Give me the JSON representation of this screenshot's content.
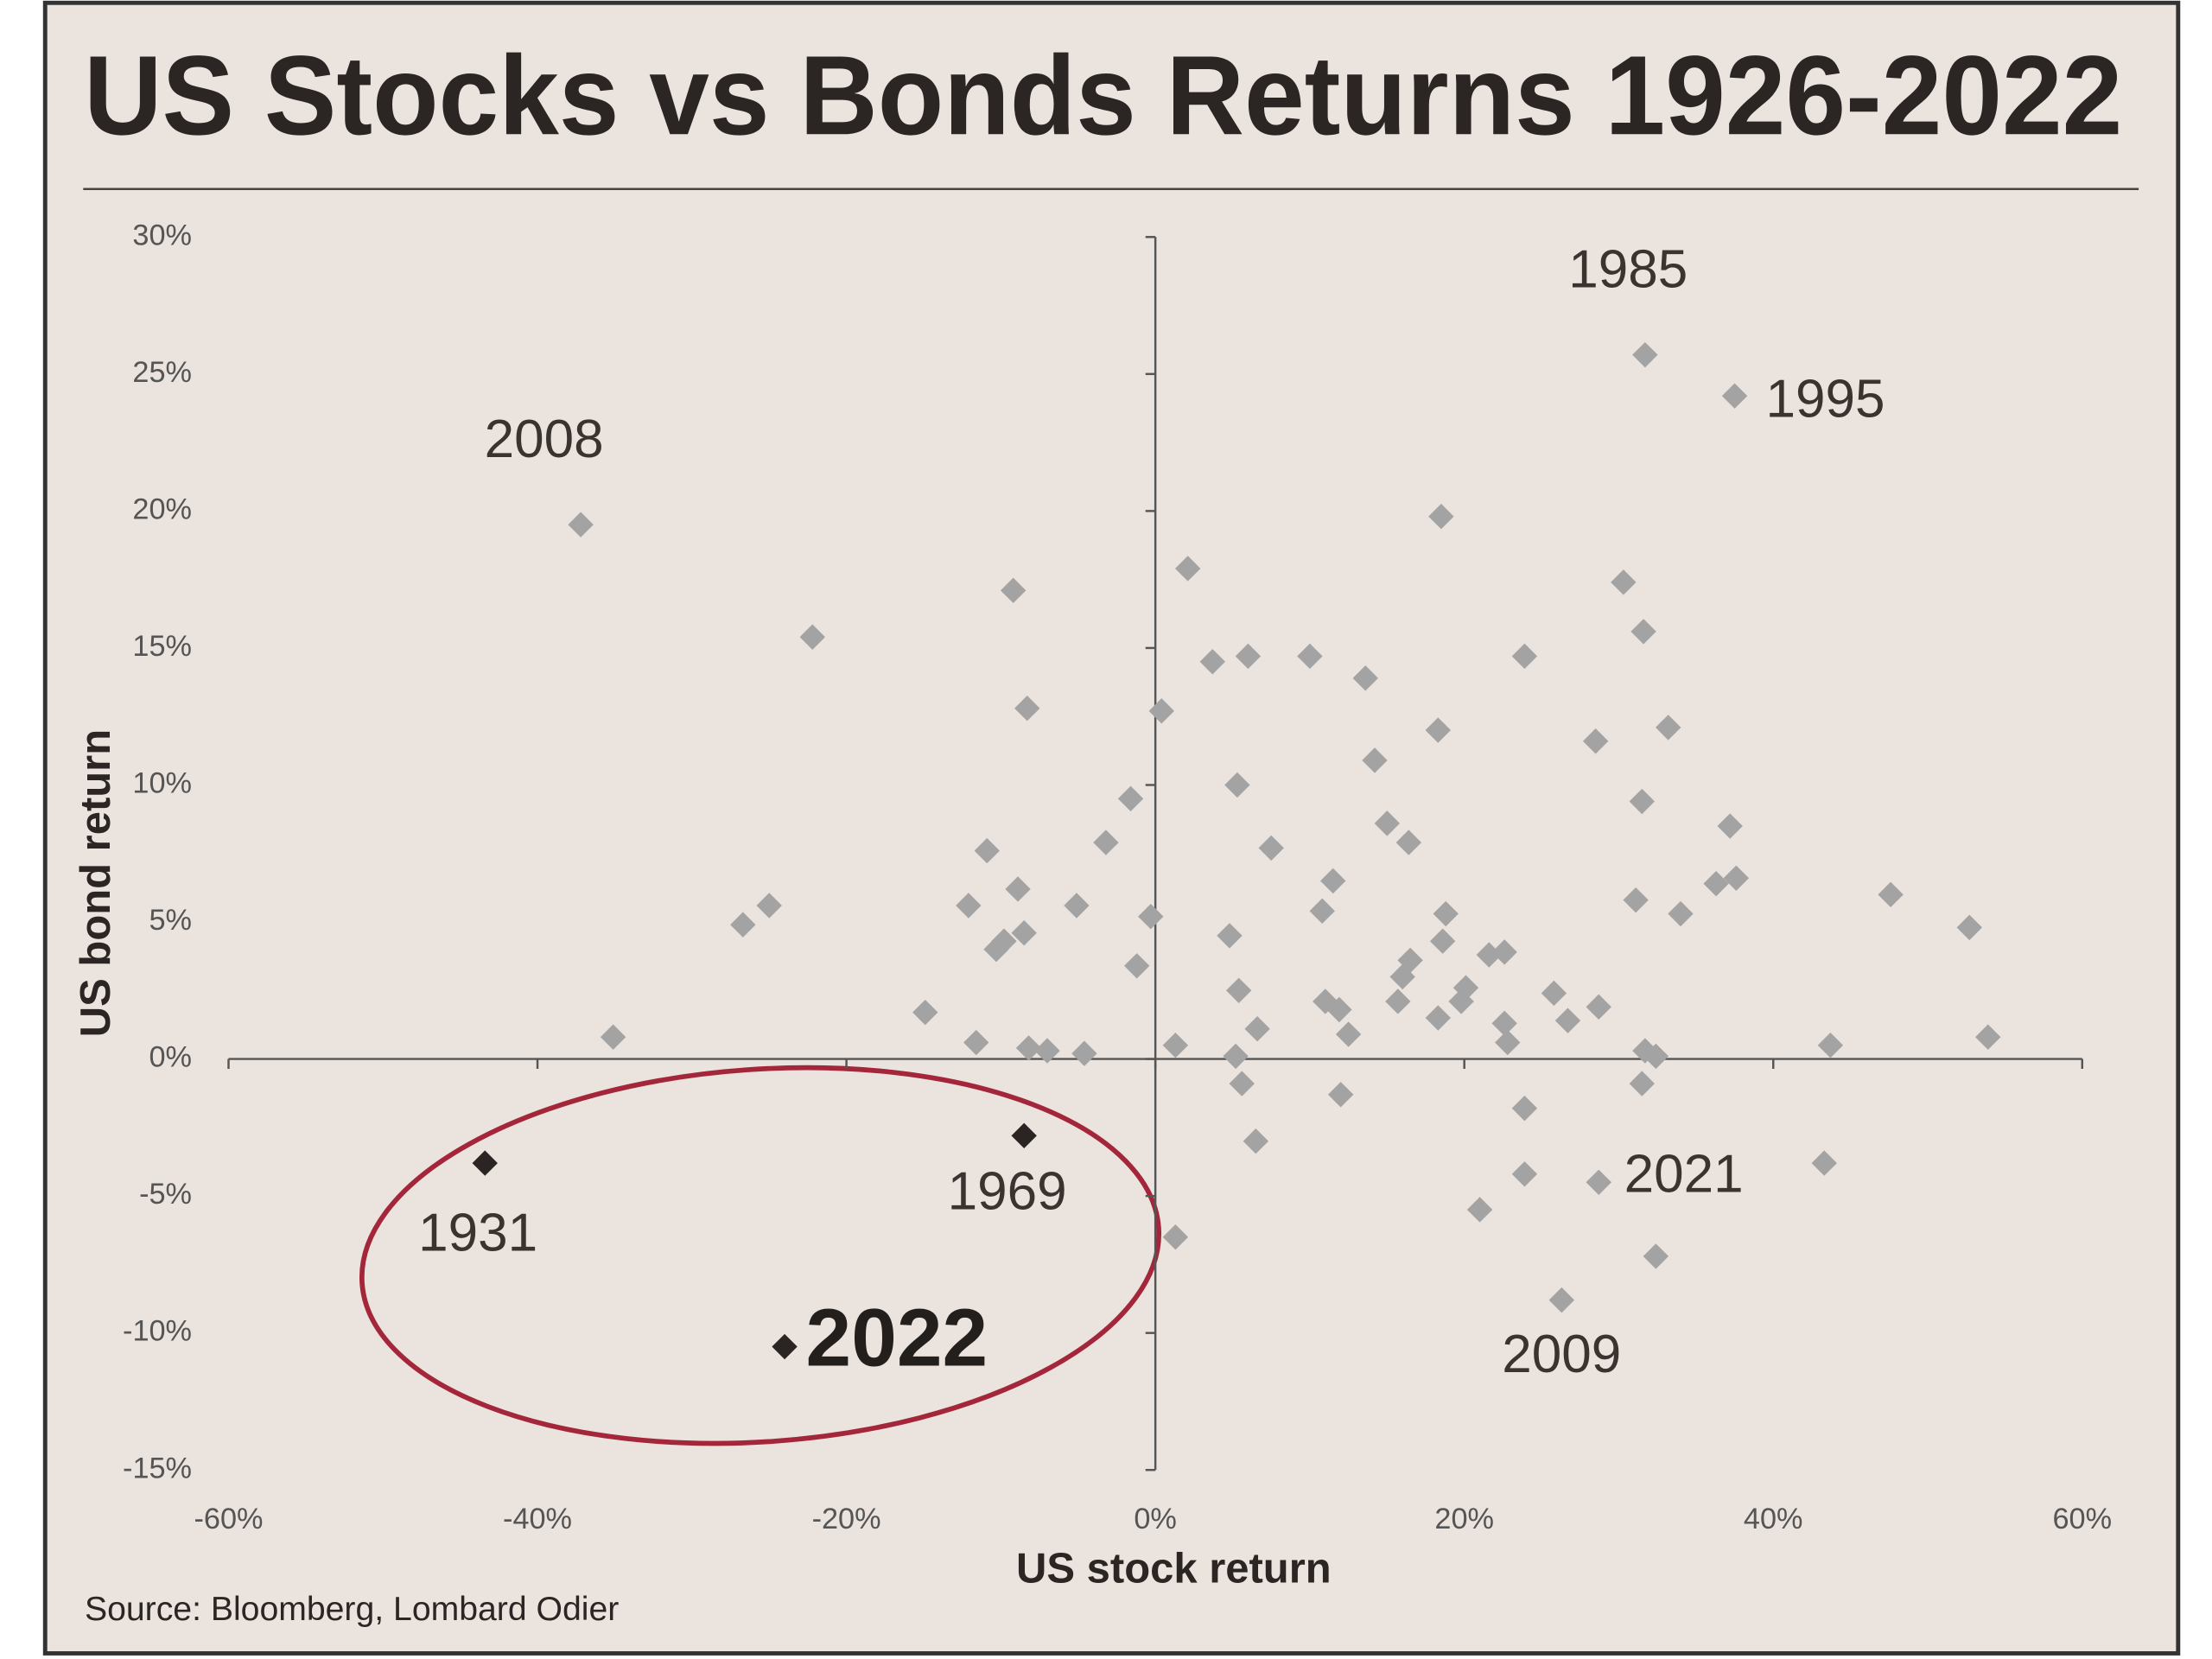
{
  "chart_data": {
    "type": "scatter",
    "title": "US Stocks vs Bonds Returns 1926-2022",
    "x_label": "US stock return",
    "y_label": "US bond return",
    "source": "Source: Bloomberg, Lombard Odier",
    "xlim": [
      -60,
      60
    ],
    "ylim": [
      -15,
      30
    ],
    "xticks": [
      {
        "value": -60,
        "label": "-60%"
      },
      {
        "value": -40,
        "label": "-40%"
      },
      {
        "value": -20,
        "label": "-20%"
      },
      {
        "value": 0,
        "label": "0%"
      },
      {
        "value": 20,
        "label": "20%"
      },
      {
        "value": 40,
        "label": "40%"
      },
      {
        "value": 60,
        "label": "60%"
      }
    ],
    "yticks": [
      {
        "value": -15,
        "label": "-15%"
      },
      {
        "value": -10,
        "label": "-10%"
      },
      {
        "value": -5,
        "label": "-5%"
      },
      {
        "value": 0,
        "label": "0%"
      },
      {
        "value": 5,
        "label": "5%"
      },
      {
        "value": 10,
        "label": "10%"
      },
      {
        "value": 15,
        "label": "15%"
      },
      {
        "value": 20,
        "label": "20%"
      },
      {
        "value": 25,
        "label": "25%"
      },
      {
        "value": 30,
        "label": "30%"
      }
    ],
    "grid": false,
    "series": [
      {
        "color": "#a3a3a3",
        "x": [
          31.7,
          37.5,
          -37.2,
          28.7,
          26.3
        ],
        "y": [
          25.7,
          24.2,
          19.5,
          -4.5,
          -8.8
        ],
        "point_labels": [
          "1985",
          "1995",
          "2008",
          "2021",
          "2009"
        ]
      },
      {
        "color": "#a3a3a3",
        "x": [
          18.5,
          2.1,
          30.3,
          -9.2,
          -22.2,
          31.6,
          3.7,
          6.0,
          10.0,
          23.9,
          13.6,
          -8.3,
          0.4,
          33.2,
          18.3,
          28.5,
          14.2,
          5.3,
          -1.6,
          31.5,
          15.0,
          37.2,
          -3.2,
          16.4,
          -10.9,
          7.5,
          36.3,
          37.6,
          11.5,
          -8.9,
          47.6,
          -25.0,
          -12.1,
          -5.1,
          31.1,
          -26.7,
          10.8,
          18.8,
          34.0,
          -0.3,
          52.7,
          -8.5,
          -9.8,
          -10.3,
          4.8,
          18.6,
          21.6,
          22.6,
          16.5,
          16.0,
          -1.2,
          5.4,
          20.1,
          19.8,
          25.8,
          11.0,
          15.7,
          11.9,
          28.7,
          -14.9,
          18.3,
          22.6,
          26.7,
          6.6,
          12.5,
          -35.1,
          53.9,
          -11.6,
          1.3,
          22.8,
          43.7,
          -8.2,
          -7.0,
          -4.6,
          31.7,
          32.4,
          5.2,
          5.6,
          31.5,
          12.0,
          23.9,
          6.5,
          43.3,
          23.9,
          21.0,
          1.3,
          32.4
        ],
        "y": [
          19.8,
          17.9,
          17.4,
          17.1,
          15.4,
          15.6,
          14.5,
          14.7,
          14.7,
          14.7,
          13.9,
          12.8,
          12.7,
          12.1,
          12.0,
          11.6,
          10.9,
          10.0,
          9.5,
          9.4,
          8.6,
          8.5,
          7.9,
          7.9,
          7.6,
          7.7,
          6.4,
          6.6,
          6.5,
          6.2,
          6.0,
          5.6,
          5.6,
          5.6,
          5.8,
          4.9,
          5.4,
          5.3,
          5.3,
          5.2,
          4.8,
          4.6,
          4.3,
          4.0,
          4.5,
          4.3,
          3.8,
          3.9,
          3.6,
          3.0,
          3.4,
          2.5,
          2.6,
          2.1,
          2.4,
          2.1,
          2.1,
          1.8,
          1.9,
          1.7,
          1.5,
          1.3,
          1.4,
          1.1,
          0.9,
          0.8,
          0.8,
          0.6,
          0.5,
          0.6,
          0.5,
          0.4,
          0.3,
          0.2,
          0.3,
          0.1,
          0.1,
          -0.9,
          -0.9,
          -1.3,
          -1.8,
          -3.0,
          -3.8,
          -4.2,
          -5.5,
          -6.5,
          -7.2
        ]
      },
      {
        "color": "#2a2522",
        "x": [
          -43.4,
          -8.5,
          -24.0
        ],
        "y": [
          -3.8,
          -2.8,
          -10.5
        ],
        "point_labels": [
          "1931",
          "1969",
          "2022"
        ]
      }
    ]
  }
}
